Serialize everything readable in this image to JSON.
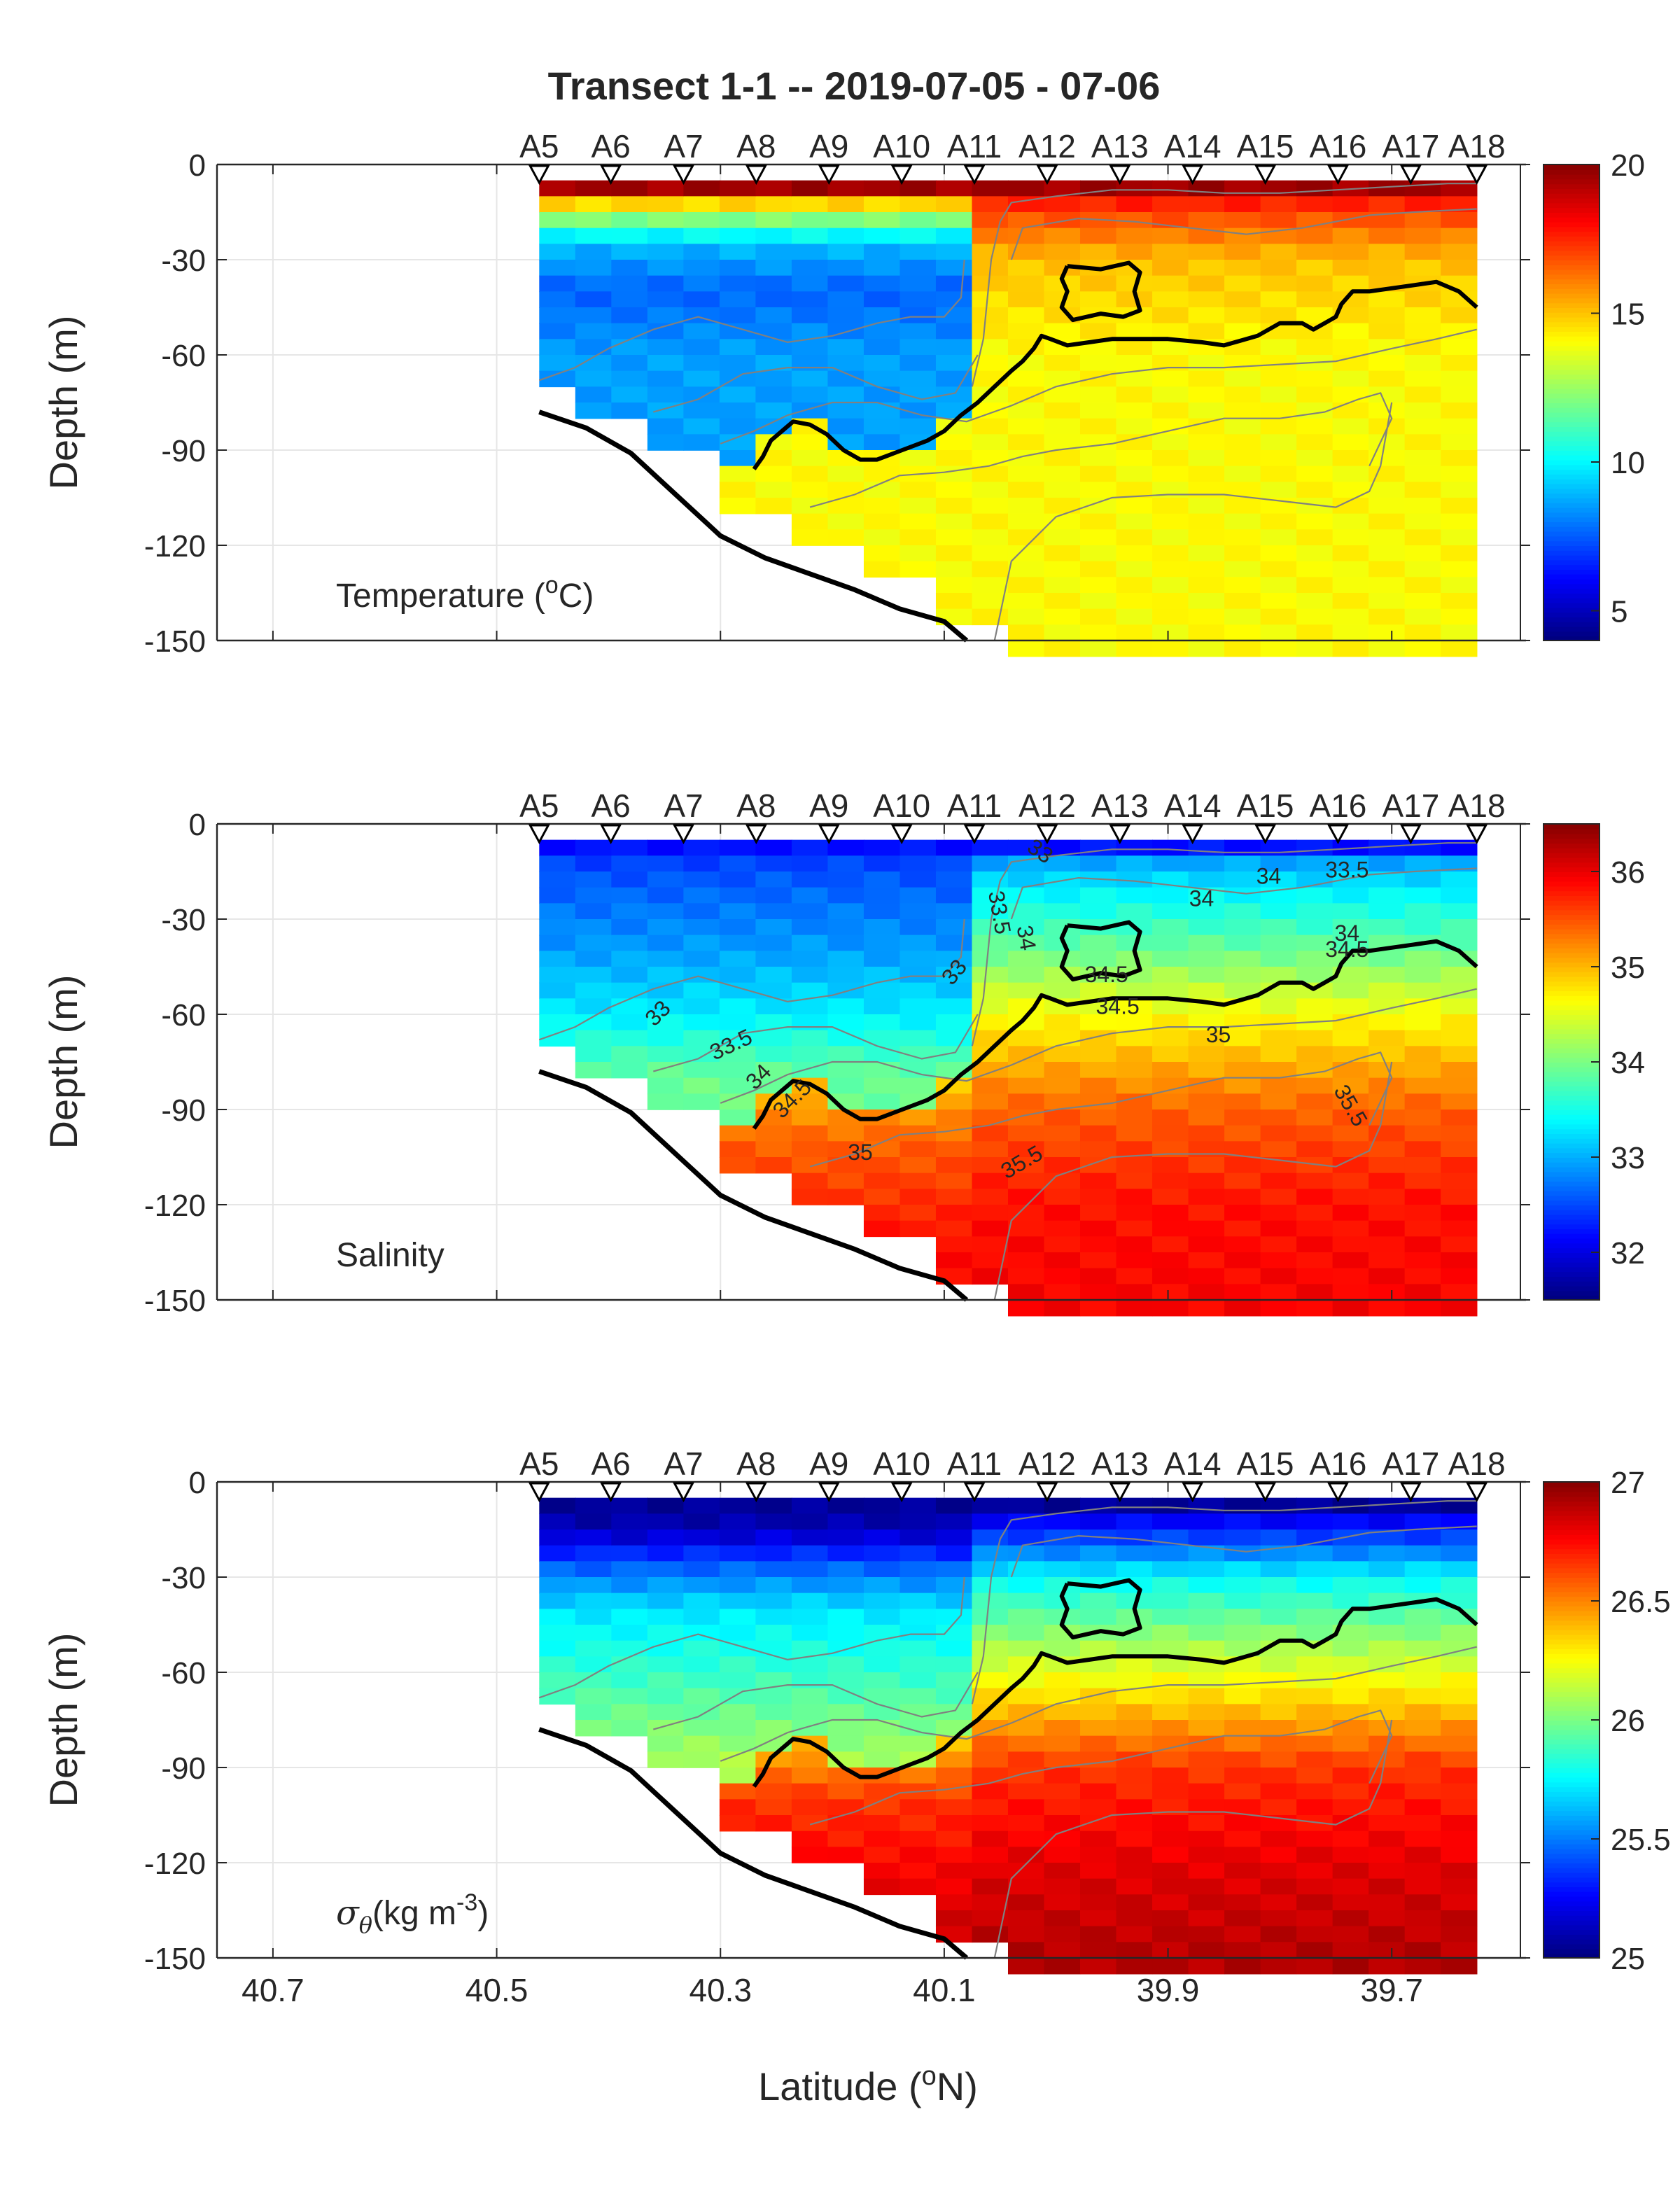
{
  "title": "Transect 1-1 -- 2019-07-05 - 07-06",
  "xlabel": "Latitude (oN)",
  "ylabel": "Depth (m)",
  "stations": [
    {
      "name": "A5",
      "lat": 40.462
    },
    {
      "name": "A6",
      "lat": 40.398
    },
    {
      "name": "A7",
      "lat": 40.333
    },
    {
      "name": "A8",
      "lat": 40.268
    },
    {
      "name": "A9",
      "lat": 40.203
    },
    {
      "name": "A10",
      "lat": 40.138
    },
    {
      "name": "A11",
      "lat": 40.073
    },
    {
      "name": "A12",
      "lat": 40.008
    },
    {
      "name": "A13",
      "lat": 39.943
    },
    {
      "name": "A14",
      "lat": 39.878
    },
    {
      "name": "A15",
      "lat": 39.813
    },
    {
      "name": "A16",
      "lat": 39.748
    },
    {
      "name": "A17",
      "lat": 39.683
    },
    {
      "name": "A18",
      "lat": 39.624
    }
  ],
  "station_max_depth": [
    -68,
    -78,
    -88,
    -108,
    -118,
    -128,
    -140,
    -150,
    -150,
    -150,
    -150,
    -150,
    -150,
    -150
  ],
  "bottom_profile": {
    "lat": [
      40.462,
      40.42,
      40.38,
      40.34,
      40.3,
      40.26,
      40.22,
      40.18,
      40.14,
      40.1,
      40.08
    ],
    "depth": [
      -78,
      -83,
      -91,
      -104,
      -117,
      -124,
      -129,
      -134,
      -140,
      -144,
      -150
    ]
  },
  "chart_data": [
    {
      "type": "heatmap",
      "label": "Temperature (oC)",
      "xlabel": "",
      "ylabel": "Depth (m)",
      "xlim": [
        40.75,
        39.58
      ],
      "ylim": [
        -150,
        0
      ],
      "xticks": [
        40.7,
        40.5,
        40.3,
        40.1,
        39.9,
        39.7
      ],
      "xtick_labels": [],
      "yticks": [
        0,
        -30,
        -60,
        -90,
        -120,
        -150
      ],
      "colorbar": {
        "min": 4,
        "max": 20,
        "ticks": [
          5,
          10,
          15,
          20
        ]
      },
      "surface_value": 19.5,
      "upper_profile": {
        "depth": [
          -5,
          -15,
          -25,
          -40,
          -60
        ],
        "values": [
          19.5,
          13,
          9,
          7.5,
          8.5
        ]
      },
      "lower_profile": {
        "depth": [
          -5,
          -15,
          -30,
          -60,
          -90,
          -120,
          -150
        ],
        "values": [
          19,
          17,
          15,
          14,
          14,
          14,
          14
        ]
      },
      "contours": []
    },
    {
      "type": "heatmap",
      "label": "Salinity",
      "xlabel": "",
      "ylabel": "Depth (m)",
      "xlim": [
        40.75,
        39.58
      ],
      "ylim": [
        -150,
        0
      ],
      "xticks": [
        40.7,
        40.5,
        40.3,
        40.1,
        39.9,
        39.7
      ],
      "xtick_labels": [],
      "yticks": [
        0,
        -30,
        -60,
        -90,
        -120,
        -150
      ],
      "colorbar": {
        "min": 31.5,
        "max": 36.5,
        "ticks": [
          32,
          33,
          34,
          35,
          36
        ]
      },
      "surface_value": 32.2,
      "upper_profile": {
        "depth": [
          -5,
          -20,
          -40,
          -60,
          -80
        ],
        "values": [
          32.3,
          32.6,
          32.9,
          33.3,
          33.9
        ]
      },
      "lower_profile": {
        "depth": [
          -5,
          -20,
          -40,
          -60,
          -90,
          -120,
          -150
        ],
        "values": [
          32.6,
          33.3,
          33.9,
          34.6,
          35.4,
          35.8,
          35.9
        ]
      },
      "contours": [
        {
          "text": "33",
          "lat": 40.015,
          "depth": -9,
          "rot": 35
        },
        {
          "text": "34",
          "lat": 39.81,
          "depth": -17,
          "rot": 0
        },
        {
          "text": "33.5",
          "lat": 39.74,
          "depth": -15,
          "rot": 0
        },
        {
          "text": "34",
          "lat": 39.87,
          "depth": -24,
          "rot": 0
        },
        {
          "text": "33.5",
          "lat": 40.052,
          "depth": -28,
          "rot": 80
        },
        {
          "text": "34",
          "lat": 40.028,
          "depth": -36,
          "rot": 80
        },
        {
          "text": "34",
          "lat": 39.74,
          "depth": -35,
          "rot": 0
        },
        {
          "text": "34.5",
          "lat": 39.74,
          "depth": -40,
          "rot": 0
        },
        {
          "text": "33",
          "lat": 40.09,
          "depth": -47,
          "rot": -50
        },
        {
          "text": "34.5",
          "lat": 39.955,
          "depth": -48,
          "rot": 0
        },
        {
          "text": "34.5",
          "lat": 39.945,
          "depth": -58,
          "rot": 0
        },
        {
          "text": "33",
          "lat": 40.355,
          "depth": -60,
          "rot": -45
        },
        {
          "text": "35",
          "lat": 39.855,
          "depth": -67,
          "rot": 0
        },
        {
          "text": "33.5",
          "lat": 40.29,
          "depth": -70,
          "rot": -25
        },
        {
          "text": "34",
          "lat": 40.265,
          "depth": -80,
          "rot": -45
        },
        {
          "text": "34.5",
          "lat": 40.235,
          "depth": -87,
          "rot": -45
        },
        {
          "text": "35.5",
          "lat": 39.738,
          "depth": -89,
          "rot": 60
        },
        {
          "text": "35",
          "lat": 40.175,
          "depth": -104,
          "rot": 0
        },
        {
          "text": "35.5",
          "lat": 40.03,
          "depth": -107,
          "rot": -30
        }
      ]
    },
    {
      "type": "heatmap",
      "label": "σθ(kg m-3)",
      "xlabel": "Latitude (oN)",
      "ylabel": "Depth (m)",
      "xlim": [
        40.75,
        39.58
      ],
      "ylim": [
        -150,
        0
      ],
      "xticks": [
        40.7,
        40.5,
        40.3,
        40.1,
        39.9,
        39.7
      ],
      "xtick_labels": [
        "40.7",
        "40.5",
        "40.3",
        "40.1",
        "39.9",
        "39.7"
      ],
      "yticks": [
        0,
        -30,
        -60,
        -90,
        -120,
        -150
      ],
      "colorbar": {
        "min": 25,
        "max": 27,
        "ticks": [
          25,
          25.5,
          26,
          26.5,
          27
        ]
      },
      "surface_value": 25.05,
      "upper_profile": {
        "depth": [
          -5,
          -15,
          -25,
          -40,
          -60,
          -90
        ],
        "values": [
          25.05,
          25.1,
          25.4,
          25.7,
          25.85,
          26.1
        ]
      },
      "lower_profile": {
        "depth": [
          -5,
          -15,
          -30,
          -50,
          -70,
          -90,
          -120,
          -150
        ],
        "values": [
          25.1,
          25.3,
          25.75,
          26.05,
          26.35,
          26.65,
          26.8,
          26.9
        ]
      },
      "contours": []
    }
  ],
  "thick_contour": {
    "lat": [
      40.27,
      40.262,
      40.255,
      40.245,
      40.235,
      40.22,
      40.205,
      40.19,
      40.175,
      40.16,
      40.145,
      40.13,
      40.115,
      40.1,
      40.085,
      40.07,
      40.055,
      40.04,
      40.03,
      40.02,
      40.013,
      40.005,
      39.99,
      39.97,
      39.95,
      39.93,
      39.9,
      39.87,
      39.85,
      39.82,
      39.8,
      39.78,
      39.77,
      39.76,
      39.75,
      39.745,
      39.74,
      39.735,
      39.72,
      39.7,
      39.68,
      39.66,
      39.64,
      39.624
    ],
    "depth": [
      -96,
      -92,
      -87,
      -84,
      -81,
      -82,
      -85,
      -90,
      -93,
      -93,
      -91,
      -89,
      -87,
      -84,
      -79,
      -75,
      -70,
      -65,
      -62,
      -58,
      -54,
      -55,
      -57,
      -56,
      -55,
      -55,
      -55,
      -56,
      -57,
      -54,
      -50,
      -50,
      -52,
      -50,
      -48,
      -44,
      -42,
      -40,
      -40,
      -39,
      -38,
      -37,
      -40,
      -45
    ]
  },
  "thick_contour_loop": {
    "lat": [
      39.99,
      39.96,
      39.935,
      39.925,
      39.93,
      39.925,
      39.94,
      39.96,
      39.985,
      39.995,
      39.99,
      39.995,
      39.99
    ],
    "depth": [
      -32,
      -33,
      -31,
      -34,
      -40,
      -46,
      -48,
      -47,
      -49,
      -45,
      -40,
      -36,
      -32
    ]
  },
  "thin_contours": [
    {
      "lat": [
        40.075,
        40.065,
        40.058,
        40.05,
        40.04,
        40.0,
        39.95,
        39.9,
        39.85,
        39.8,
        39.75,
        39.7,
        39.65,
        39.624
      ],
      "depth": [
        -70,
        -55,
        -30,
        -18,
        -12,
        -10,
        -8,
        -8,
        -9,
        -9,
        -8,
        -7,
        -6,
        -6
      ]
    },
    {
      "lat": [
        40.04,
        40.03,
        39.98,
        39.93,
        39.88,
        39.83,
        39.78,
        39.75,
        39.72,
        39.68,
        39.624
      ],
      "depth": [
        -30,
        -20,
        -17,
        -18,
        -20,
        -22,
        -20,
        -18,
        -16,
        -15,
        -14
      ]
    },
    {
      "lat": [
        40.462,
        40.43,
        40.4,
        40.36,
        40.32,
        40.28,
        40.24,
        40.2,
        40.16,
        40.13,
        40.1,
        40.085,
        40.082
      ],
      "depth": [
        -68,
        -64,
        -58,
        -52,
        -48,
        -52,
        -56,
        -54,
        -50,
        -48,
        -48,
        -42,
        -30
      ]
    },
    {
      "lat": [
        40.36,
        40.32,
        40.28,
        40.24,
        40.2,
        40.16,
        40.12,
        40.09,
        40.07
      ],
      "depth": [
        -78,
        -74,
        -66,
        -64,
        -64,
        -70,
        -74,
        -72,
        -60
      ]
    },
    {
      "lat": [
        40.3,
        40.27,
        40.24,
        40.2,
        40.16,
        40.12,
        40.08,
        40.04,
        40.0,
        39.95,
        39.9,
        39.85,
        39.8,
        39.75,
        39.7,
        39.66,
        39.624
      ],
      "depth": [
        -88,
        -84,
        -79,
        -75,
        -75,
        -79,
        -81,
        -76,
        -70,
        -66,
        -64,
        -64,
        -63,
        -62,
        -58,
        -55,
        -52
      ]
    },
    {
      "lat": [
        40.22,
        40.18,
        40.14,
        40.1,
        40.06,
        40.03,
        40.0,
        39.95,
        39.9,
        39.85,
        39.8,
        39.76,
        39.73,
        39.71,
        39.7,
        39.72
      ],
      "depth": [
        -108,
        -104,
        -98,
        -97,
        -95,
        -92,
        -90,
        -88,
        -84,
        -80,
        -80,
        -78,
        -74,
        -72,
        -80,
        -95
      ]
    },
    {
      "lat": [
        40.055,
        40.04,
        40.0,
        39.95,
        39.9,
        39.85,
        39.8,
        39.75,
        39.72,
        39.71,
        39.7
      ],
      "depth": [
        -150,
        -125,
        -111,
        -105,
        -104,
        -104,
        -106,
        -108,
        -103,
        -95,
        -75
      ]
    }
  ]
}
